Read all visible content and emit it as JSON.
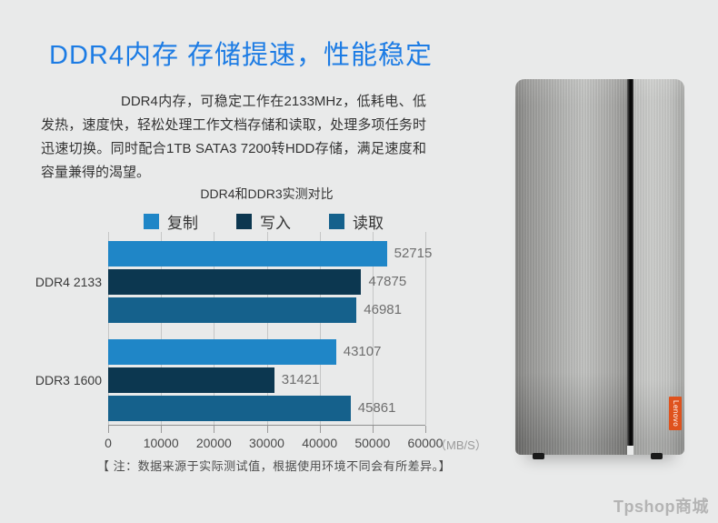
{
  "header": {
    "title": "DDR4内存 存储提速，性能稳定"
  },
  "intro": {
    "text": "DDR4内存，可稳定工作在2133MHz，低耗电、低发热，速度快，轻松处理工作文档存储和读取，处理多项任务时迅速切换。同时配合1TB SATA3 7200转HDD存储，满足速度和容量兼得的渴望。"
  },
  "chart_data": {
    "type": "bar",
    "orientation": "horizontal",
    "title": "DDR4和DDR3实测对比",
    "categories": [
      "DDR4 2133",
      "DDR3 1600"
    ],
    "series": [
      {
        "name": "复制",
        "color": "#1f86c7",
        "values": [
          52715,
          43107
        ]
      },
      {
        "name": "写入",
        "color": "#0c3750",
        "values": [
          47875,
          31421
        ]
      },
      {
        "name": "读取",
        "color": "#15618c",
        "values": [
          46981,
          45861
        ]
      }
    ],
    "xlim": [
      0,
      60000
    ],
    "xticks": [
      0,
      10000,
      20000,
      30000,
      40000,
      50000,
      60000
    ],
    "x_unit": "（MB/S）",
    "grid": true,
    "legend_position": "top",
    "note": "【 注：数据来源于实际测试值，根据使用环境不同会有所差异。】"
  },
  "colors": {
    "title_blue": "#1d7ce4",
    "background": "#e9eaea",
    "lenovo_orange": "#df521d"
  },
  "product": {
    "badge_label": "Lenovo"
  },
  "footer": {
    "watermark": "Tpshop商城"
  }
}
